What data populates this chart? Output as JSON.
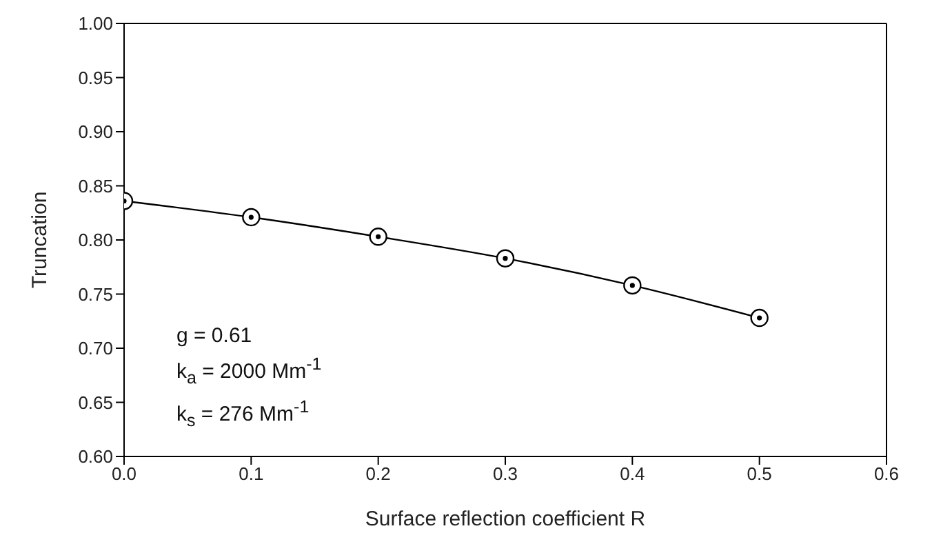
{
  "chart_data": {
    "type": "line",
    "xlabel": "Surface reflection coefficient R",
    "ylabel": "Truncation",
    "x": [
      0,
      0.1,
      0.2,
      0.3,
      0.4,
      0.5
    ],
    "series": [
      {
        "color": "#000000",
        "values": [
          0.836,
          0.821,
          0.803,
          0.783,
          0.758,
          0.728
        ]
      }
    ],
    "xlim": [
      0,
      0.6
    ],
    "xticks": [
      {
        "value": 0,
        "label": "0.0"
      },
      {
        "value": 0.1,
        "label": "0.1"
      },
      {
        "value": 0.2,
        "label": "0.2"
      },
      {
        "value": 0.3,
        "label": "0.3"
      },
      {
        "value": 0.4,
        "label": "0.4"
      },
      {
        "value": 0.5,
        "label": "0.5"
      },
      {
        "value": 0.6,
        "label": "0.6"
      }
    ],
    "ylim": [
      0.6,
      1
    ],
    "yticks": [
      {
        "value": 0.6,
        "label": "0.60"
      },
      {
        "value": 0.65,
        "label": "0.65"
      },
      {
        "value": 0.7,
        "label": "0.70"
      },
      {
        "value": 0.75,
        "label": "0.75"
      },
      {
        "value": 0.8,
        "label": "0.80"
      },
      {
        "value": 0.85,
        "label": "0.85"
      },
      {
        "value": 0.9,
        "label": "0.90"
      },
      {
        "value": 0.95,
        "label": "0.95"
      },
      {
        "value": 1,
        "label": "1.00"
      }
    ],
    "annotations": [
      "g = 0.61",
      "k$_{a}$ = 2000 Mm$^{-1}$",
      "k$_{s}$ = 276 Mm$^{-1}$"
    ],
    "marker": "circle",
    "line_style": "solid",
    "grid": false,
    "legend": false
  }
}
